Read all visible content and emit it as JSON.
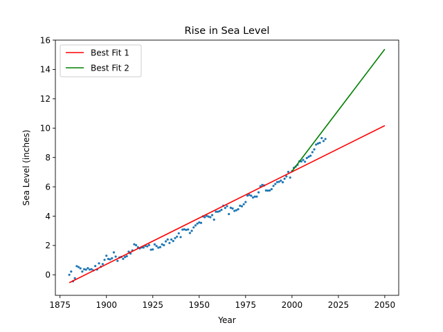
{
  "chart_data": {
    "type": "scatter",
    "title": "Rise in Sea Level",
    "xlabel": "Year",
    "ylabel": "Sea Level (inches)",
    "xlim": [
      1872.5,
      2057.5
    ],
    "ylim": [
      -1.4,
      16
    ],
    "xticks": [
      1875,
      1900,
      1925,
      1950,
      1975,
      2000,
      2025,
      2050
    ],
    "yticks": [
      0,
      2,
      4,
      6,
      8,
      10,
      12,
      14,
      16
    ],
    "grid": false,
    "legend_placement": "top-left",
    "scatter": {
      "color": "#1f77b4",
      "points": [
        [
          1880,
          0.0
        ],
        [
          1881,
          0.22
        ],
        [
          1882,
          -0.44
        ],
        [
          1883,
          -0.23
        ],
        [
          1884,
          0.59
        ],
        [
          1885,
          0.53
        ],
        [
          1886,
          0.44
        ],
        [
          1887,
          0.22
        ],
        [
          1888,
          0.38
        ],
        [
          1889,
          0.35
        ],
        [
          1890,
          0.45
        ],
        [
          1891,
          0.36
        ],
        [
          1892,
          0.38
        ],
        [
          1893,
          0.3
        ],
        [
          1894,
          0.6
        ],
        [
          1895,
          0.36
        ],
        [
          1896,
          0.78
        ],
        [
          1897,
          0.55
        ],
        [
          1898,
          0.73
        ],
        [
          1899,
          1.02
        ],
        [
          1900,
          1.3
        ],
        [
          1901,
          1.08
        ],
        [
          1902,
          1.05
        ],
        [
          1903,
          1.13
        ],
        [
          1904,
          1.53
        ],
        [
          1905,
          1.24
        ],
        [
          1906,
          0.95
        ],
        [
          1907,
          1.18
        ],
        [
          1908,
          1.22
        ],
        [
          1909,
          1.09
        ],
        [
          1910,
          1.21
        ],
        [
          1911,
          1.27
        ],
        [
          1912,
          1.58
        ],
        [
          1913,
          1.45
        ],
        [
          1914,
          1.66
        ],
        [
          1915,
          2.08
        ],
        [
          1916,
          2.02
        ],
        [
          1917,
          1.88
        ],
        [
          1918,
          1.8
        ],
        [
          1919,
          1.87
        ],
        [
          1920,
          1.86
        ],
        [
          1921,
          1.98
        ],
        [
          1922,
          1.94
        ],
        [
          1923,
          2.03
        ],
        [
          1924,
          1.71
        ],
        [
          1925,
          1.73
        ],
        [
          1926,
          2.07
        ],
        [
          1927,
          1.96
        ],
        [
          1928,
          1.85
        ],
        [
          1929,
          1.89
        ],
        [
          1930,
          2.08
        ],
        [
          1931,
          2.02
        ],
        [
          1932,
          2.28
        ],
        [
          1933,
          2.41
        ],
        [
          1934,
          2.17
        ],
        [
          1935,
          2.41
        ],
        [
          1936,
          2.3
        ],
        [
          1937,
          2.5
        ],
        [
          1938,
          2.6
        ],
        [
          1939,
          2.83
        ],
        [
          1940,
          2.57
        ],
        [
          1941,
          3.08
        ],
        [
          1942,
          3.1
        ],
        [
          1943,
          3.06
        ],
        [
          1944,
          3.09
        ],
        [
          1945,
          2.85
        ],
        [
          1946,
          3.0
        ],
        [
          1947,
          3.23
        ],
        [
          1948,
          3.37
        ],
        [
          1949,
          3.49
        ],
        [
          1950,
          3.57
        ],
        [
          1951,
          3.54
        ],
        [
          1952,
          3.98
        ],
        [
          1953,
          3.93
        ],
        [
          1954,
          4.02
        ],
        [
          1955,
          3.97
        ],
        [
          1956,
          3.93
        ],
        [
          1957,
          4.07
        ],
        [
          1958,
          3.76
        ],
        [
          1959,
          4.3
        ],
        [
          1960,
          4.3
        ],
        [
          1961,
          4.34
        ],
        [
          1962,
          4.43
        ],
        [
          1963,
          4.71
        ],
        [
          1964,
          4.56
        ],
        [
          1965,
          4.68
        ],
        [
          1966,
          4.14
        ],
        [
          1967,
          4.57
        ],
        [
          1968,
          4.52
        ],
        [
          1969,
          4.36
        ],
        [
          1970,
          4.4
        ],
        [
          1971,
          4.47
        ],
        [
          1972,
          4.71
        ],
        [
          1973,
          4.67
        ],
        [
          1974,
          4.81
        ],
        [
          1975,
          4.96
        ],
        [
          1976,
          5.4
        ],
        [
          1977,
          5.45
        ],
        [
          1978,
          5.39
        ],
        [
          1979,
          5.27
        ],
        [
          1980,
          5.33
        ],
        [
          1981,
          5.33
        ],
        [
          1982,
          5.62
        ],
        [
          1983,
          6.04
        ],
        [
          1984,
          6.13
        ],
        [
          1985,
          6.09
        ],
        [
          1986,
          5.75
        ],
        [
          1987,
          5.74
        ],
        [
          1988,
          5.75
        ],
        [
          1989,
          5.84
        ],
        [
          1990,
          6.06
        ],
        [
          1991,
          6.19
        ],
        [
          1992,
          6.32
        ],
        [
          1993,
          6.34
        ],
        [
          1994,
          6.42
        ],
        [
          1995,
          6.31
        ],
        [
          1996,
          6.55
        ],
        [
          1997,
          6.71
        ],
        [
          1998,
          7.02
        ],
        [
          1999,
          6.63
        ],
        [
          2000,
          7.06
        ],
        [
          2001,
          7.29
        ],
        [
          2002,
          7.38
        ],
        [
          2003,
          7.5
        ],
        [
          2004,
          7.74
        ],
        [
          2005,
          7.73
        ],
        [
          2006,
          7.83
        ],
        [
          2007,
          7.71
        ],
        [
          2008,
          7.96
        ],
        [
          2009,
          8.05
        ],
        [
          2010,
          8.12
        ],
        [
          2011,
          8.36
        ],
        [
          2012,
          8.55
        ],
        [
          2013,
          8.88
        ],
        [
          2014,
          8.95
        ],
        [
          2015,
          9.0
        ],
        [
          2016,
          9.32
        ],
        [
          2017,
          9.12
        ],
        [
          2018,
          9.26
        ]
      ]
    },
    "series": [
      {
        "name": "Best Fit 1",
        "color": "#ff0000",
        "x": [
          1880,
          2050
        ],
        "y": [
          -0.54,
          10.17
        ]
      },
      {
        "name": "Best Fit 2",
        "color": "#008000",
        "x": [
          2000,
          2050
        ],
        "y": [
          7.06,
          15.38
        ]
      }
    ]
  }
}
